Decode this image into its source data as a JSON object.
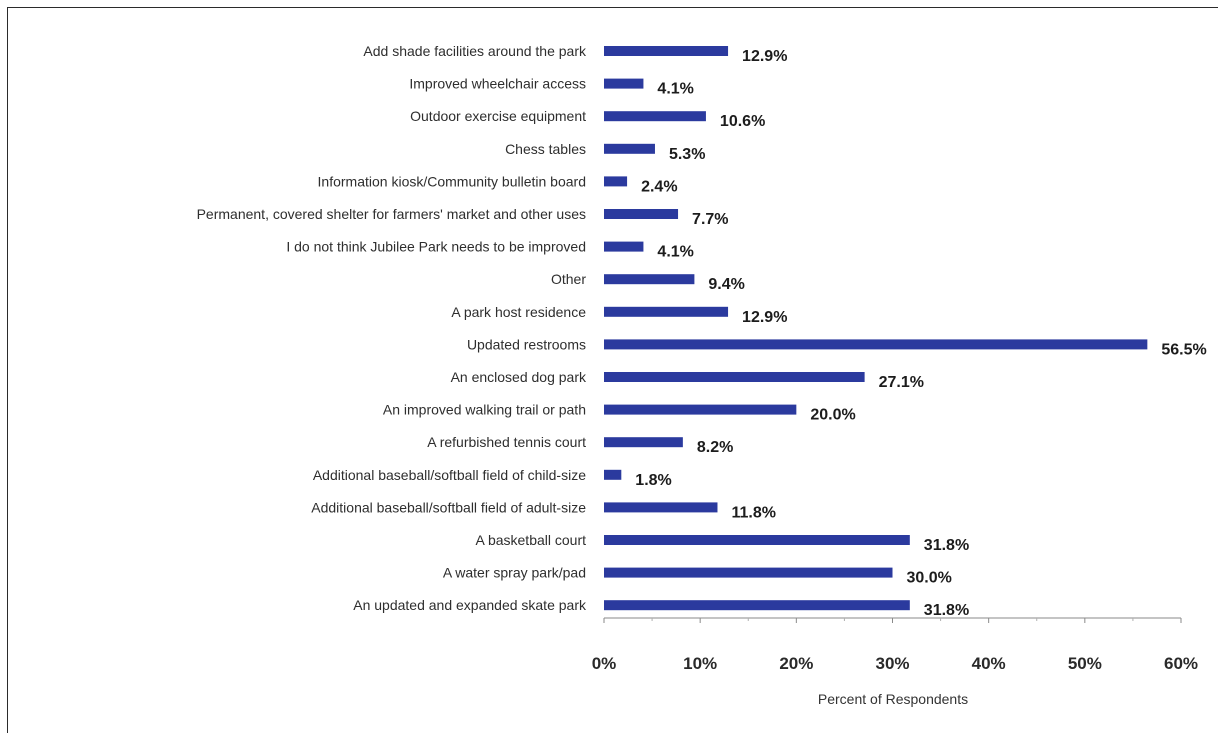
{
  "chart_data": {
    "type": "bar",
    "orientation": "horizontal",
    "title": "",
    "xlabel": "Percent of Respondents",
    "ylabel": "",
    "xlim": [
      0,
      60
    ],
    "ticks": [
      0,
      10,
      20,
      30,
      40,
      50,
      60
    ],
    "tick_labels": [
      "0%",
      "10%",
      "20%",
      "30%",
      "40%",
      "50%",
      "60%"
    ],
    "grid": false,
    "legend": "none",
    "bar_color": "#2b3a9e",
    "categories": [
      "Add shade facilities around the park",
      "Improved wheelchair access",
      "Outdoor exercise equipment",
      "Chess tables",
      "Information kiosk/Community bulletin board",
      "Permanent, covered shelter for farmers' market and other uses",
      "I do not think Jubilee Park needs to be improved",
      "Other",
      "A park host residence",
      "Updated restrooms",
      "An enclosed dog park",
      "An improved walking trail or path",
      "A refurbished tennis court",
      "Additional baseball/softball field of child-size",
      "Additional baseball/softball field of adult-size",
      "A basketball court",
      "A water spray park/pad",
      "An updated and expanded skate park"
    ],
    "values": [
      12.9,
      4.1,
      10.6,
      5.3,
      2.4,
      7.7,
      4.1,
      9.4,
      12.9,
      56.5,
      27.1,
      20.0,
      8.2,
      1.8,
      11.8,
      31.8,
      30.0,
      31.8
    ],
    "value_labels": [
      "12.9%",
      "4.1%",
      "10.6%",
      "5.3%",
      "2.4%",
      "7.7%",
      "4.1%",
      "9.4%",
      "12.9%",
      "56.5%",
      "27.1%",
      "20.0%",
      "8.2%",
      "1.8%",
      "11.8%",
      "31.8%",
      "30.0%",
      "31.8%"
    ]
  }
}
